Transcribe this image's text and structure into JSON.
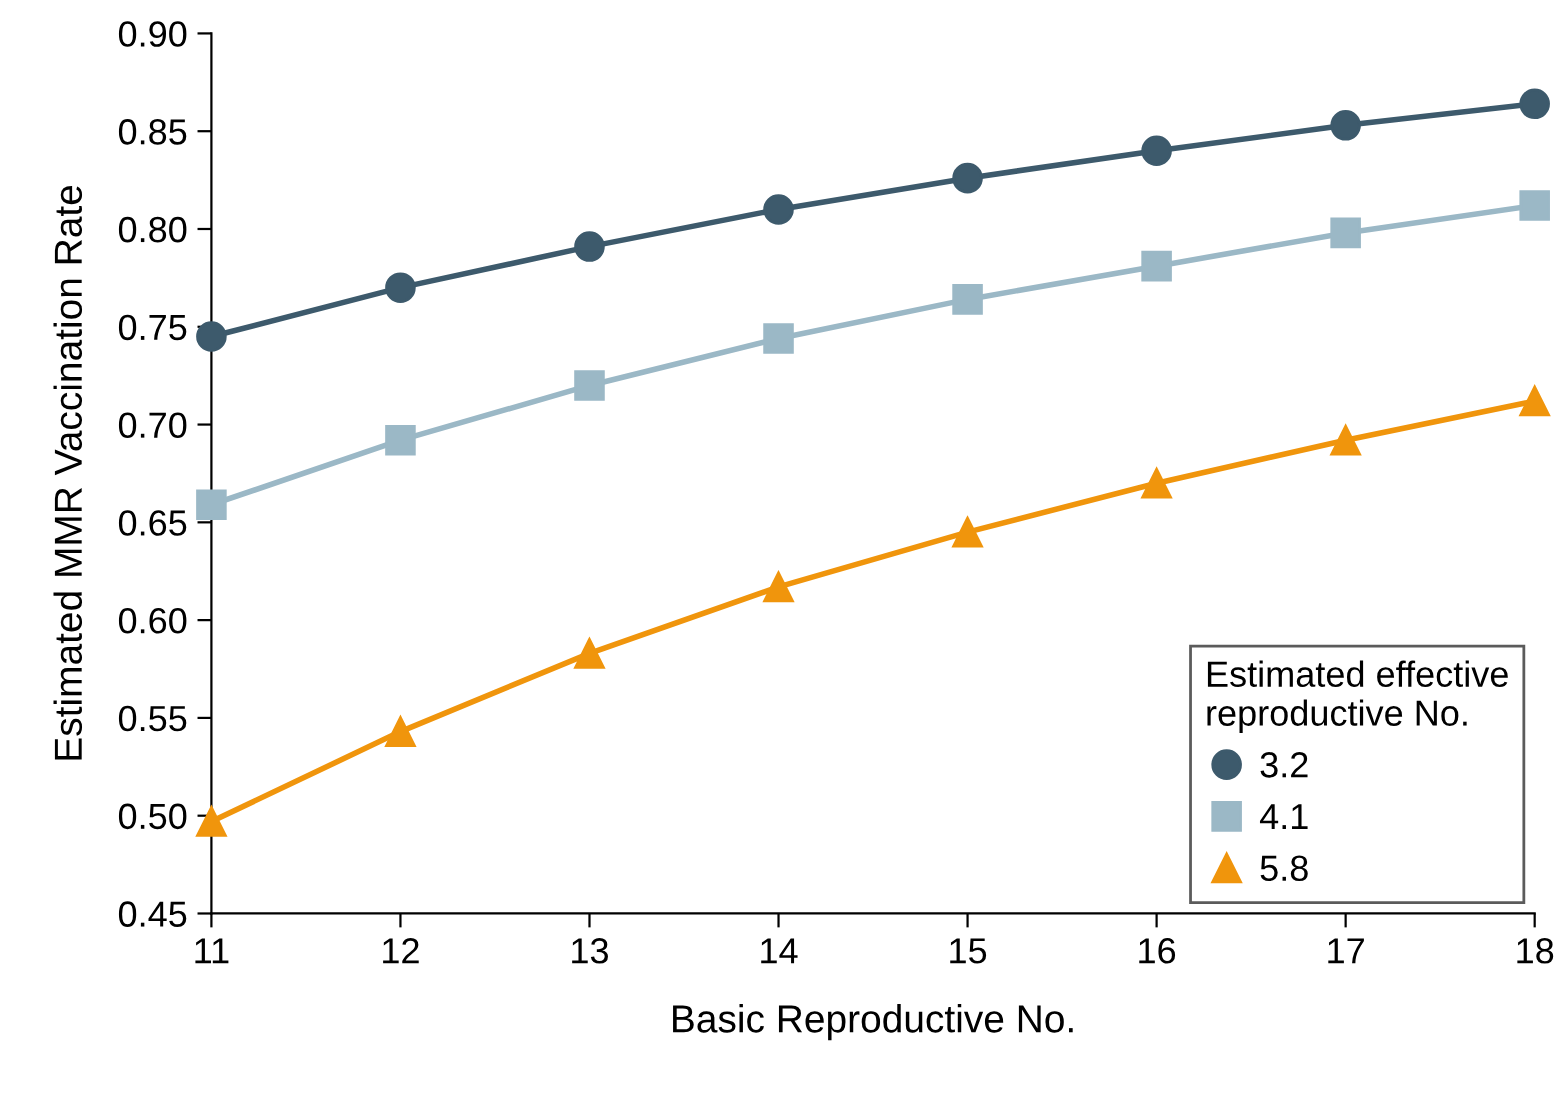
{
  "chart_data": {
    "type": "line",
    "xlabel": "Basic Reproductive No.",
    "ylabel": "Estimated MMR Vaccination Rate",
    "legend_title": "Estimated effective\nreproductive No.",
    "legend": "bottom right",
    "grid": false,
    "x": [
      11,
      12,
      13,
      14,
      15,
      16,
      17,
      18
    ],
    "xlim": [
      11,
      18
    ],
    "xticks": [
      11,
      12,
      13,
      14,
      15,
      16,
      17,
      18
    ],
    "ylim": [
      0.45,
      0.9
    ],
    "yticks": [
      0.45,
      {
        "value": 0.5,
        "label": "0.50"
      },
      0.55,
      {
        "value": 0.6,
        "label": "0.60"
      },
      0.65,
      {
        "value": 0.7,
        "label": "0.70"
      },
      0.75,
      {
        "value": 0.8,
        "label": "0.80"
      },
      0.85,
      {
        "value": 0.9,
        "label": "0.90"
      }
    ],
    "series": [
      {
        "name": "3.2",
        "color": "#3d5a6c",
        "marker": "circle",
        "values": [
          0.745,
          0.77,
          0.791,
          0.81,
          0.826,
          0.84,
          0.853,
          0.864
        ]
      },
      {
        "name": "4.1",
        "color": "#9bb8c6",
        "marker": "square",
        "values": [
          0.659,
          0.692,
          0.72,
          0.744,
          0.764,
          0.781,
          0.798,
          0.812
        ]
      },
      {
        "name": "5.8",
        "color": "#f0950c",
        "marker": "triangle",
        "values": [
          0.497,
          0.543,
          0.583,
          0.617,
          0.645,
          0.67,
          0.692,
          0.712
        ]
      }
    ]
  }
}
